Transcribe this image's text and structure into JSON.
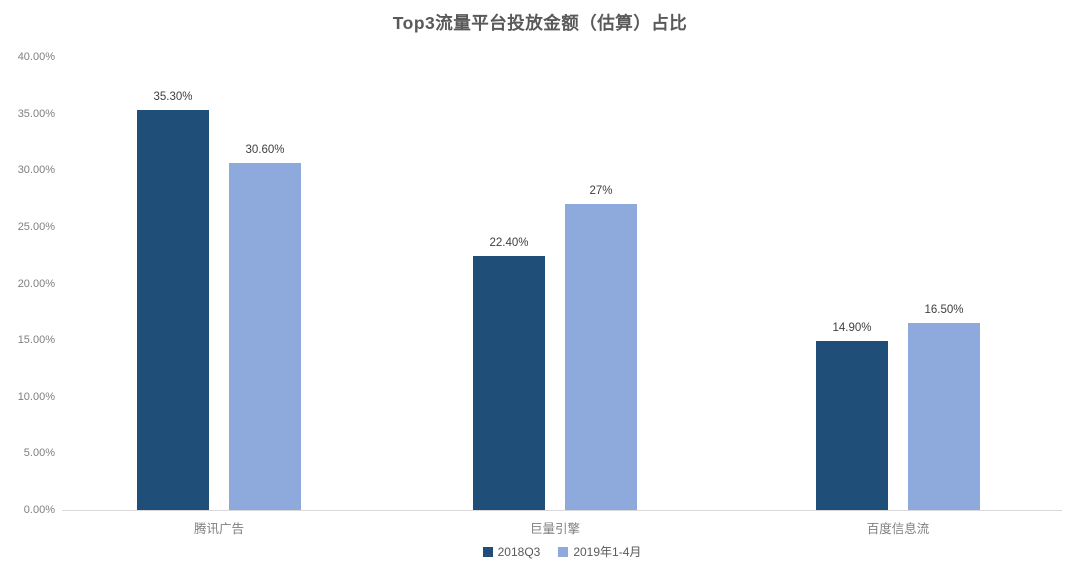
{
  "title": "Top3流量平台投放金额（估算）占比",
  "colors": {
    "series_2018q3": "#1f4e79",
    "series_2019": "#8ea9db",
    "axis_line": "#d9d9d9",
    "title_text": "#595959",
    "tick_text": "#7f7f7f",
    "value_label_text": "#3f3f3f"
  },
  "chart_data": {
    "type": "bar",
    "title": "Top3流量平台投放金额（估算）占比",
    "categories": [
      "腾讯广告",
      "巨量引擎",
      "百度信息流"
    ],
    "series": [
      {
        "name": "2018Q3",
        "color": "#1f4e79",
        "values": [
          35.3,
          22.4,
          14.9
        ],
        "value_labels": [
          "35.30%",
          "22.40%",
          "14.90%"
        ]
      },
      {
        "name": "2019年1-4月",
        "color": "#8ea9db",
        "values": [
          30.6,
          27.0,
          16.5
        ],
        "value_labels": [
          "30.60%",
          "27%",
          "16.50%"
        ]
      }
    ],
    "xlabel": "",
    "ylabel": "",
    "ylim": [
      0,
      40
    ],
    "ytick_step": 5,
    "ytick_labels": [
      "0.00%",
      "5.00%",
      "10.00%",
      "15.00%",
      "20.00%",
      "25.00%",
      "30.00%",
      "35.00%",
      "40.00%"
    ],
    "grid": false,
    "legend_position": "bottom"
  }
}
